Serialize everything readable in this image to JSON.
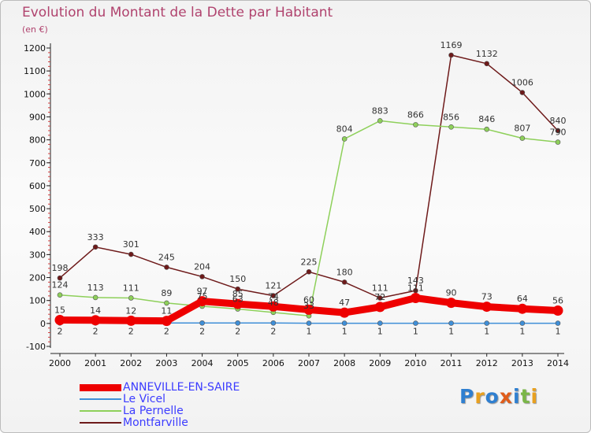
{
  "title": "Evolution du Montant de la Dette par Habitant",
  "subtitle": "(en €)",
  "logo": {
    "text": "Proxiti",
    "letters": [
      {
        "ch": "P",
        "color": "#2f7fd0"
      },
      {
        "ch": "r",
        "color": "#e8a020"
      },
      {
        "ch": "o",
        "color": "#2f7fd0"
      },
      {
        "ch": "x",
        "color": "#e05c1a"
      },
      {
        "ch": "i",
        "color": "#2f7fd0"
      },
      {
        "ch": "t",
        "color": "#7ab648"
      },
      {
        "ch": "i",
        "color": "#e8a020"
      }
    ]
  },
  "chart_data": {
    "type": "line",
    "title": "Evolution du Montant de la Dette par Habitant",
    "subtitle": "(en €)",
    "xlabel": "",
    "ylabel": "",
    "x": [
      2000,
      2001,
      2002,
      2003,
      2004,
      2005,
      2006,
      2007,
      2008,
      2009,
      2010,
      2011,
      2012,
      2013,
      2014
    ],
    "ylim": [
      -100,
      1200
    ],
    "yticks": [
      -100,
      0,
      100,
      200,
      300,
      400,
      500,
      600,
      700,
      800,
      900,
      1000,
      1100,
      1200
    ],
    "grid": false,
    "legend": "bottom-left",
    "series": [
      {
        "name": "ANNEVILLE-EN-SAIRE",
        "color": "#ee0000",
        "values": [
          15,
          14,
          12,
          11,
          97,
          85,
          74,
          60,
          47,
          72,
          111,
          90,
          73,
          64,
          56
        ],
        "labels": [
          "15",
          "14",
          "12",
          "11",
          "97",
          "85",
          "74",
          "60",
          "47",
          "72",
          "111",
          "90",
          "73",
          "64",
          "56"
        ]
      },
      {
        "name": "Le Vicel",
        "color": "#3f8fd8",
        "values": [
          2,
          2,
          2,
          2,
          2,
          2,
          2,
          1,
          1,
          1,
          1,
          1,
          1,
          1,
          1
        ],
        "labels": [
          "2",
          "2",
          "2",
          "2",
          "2",
          "2",
          "2",
          "1",
          "1",
          "1",
          "1",
          "1",
          "1",
          "1",
          "1"
        ]
      },
      {
        "name": "La Pernelle",
        "color": "#8ed05a",
        "values": [
          124,
          113,
          111,
          89,
          75,
          63,
          48,
          33,
          804,
          883,
          866,
          856,
          846,
          807,
          790
        ],
        "labels": [
          "124",
          "113",
          "111",
          "89",
          "75",
          "63",
          "48",
          "33",
          "804",
          "883",
          "866",
          "856",
          "846",
          "807",
          "790"
        ]
      },
      {
        "name": "Montfarville",
        "color": "#6e1a1a",
        "values": [
          198,
          333,
          301,
          245,
          204,
          150,
          121,
          225,
          180,
          111,
          143,
          1169,
          1132,
          1006,
          840
        ],
        "labels": [
          "198",
          "333",
          "301",
          "245",
          "204",
          "150",
          "121",
          "225",
          "180",
          "111",
          "143",
          "1169",
          "1132",
          "1006",
          "840"
        ]
      }
    ]
  }
}
